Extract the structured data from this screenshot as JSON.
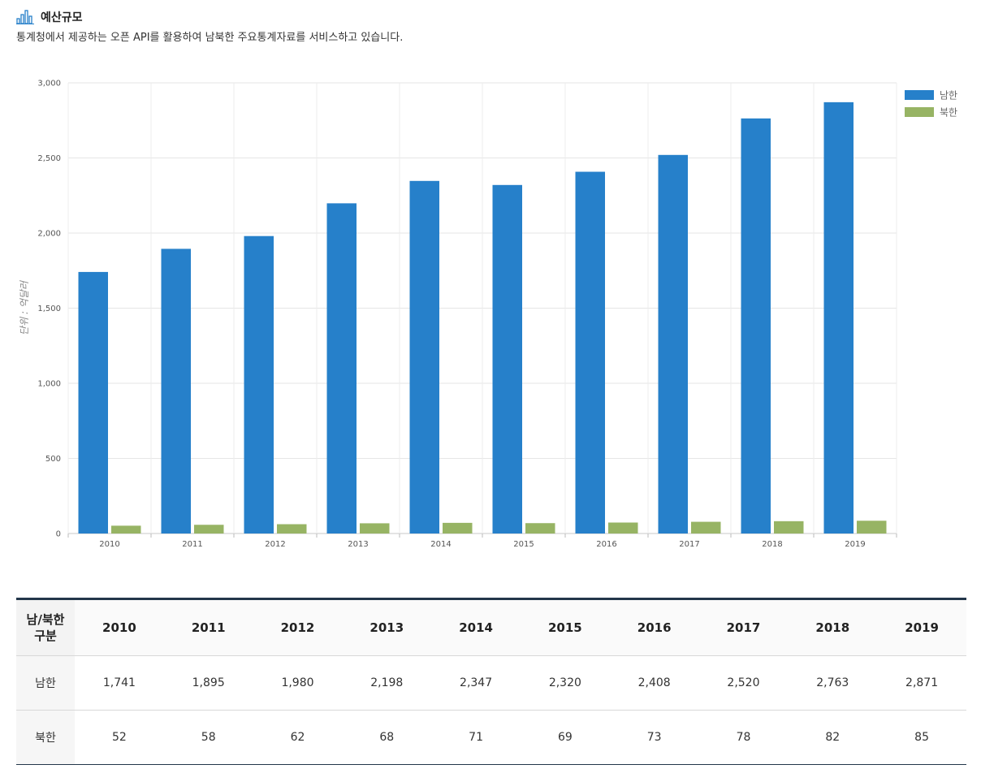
{
  "header": {
    "title": "예산규모",
    "description": "통계청에서 제공하는 오픈 API를 활용하여 남북한 주요통계자료를 서비스하고 있습니다.",
    "icon": "bar-chart-icon"
  },
  "colors": {
    "south": "#2680ca",
    "north": "#97b464",
    "table_border": "#23364a"
  },
  "chart_data": {
    "type": "bar",
    "categories": [
      "2010",
      "2011",
      "2012",
      "2013",
      "2014",
      "2015",
      "2016",
      "2017",
      "2018",
      "2019"
    ],
    "series": [
      {
        "name": "남한",
        "values": [
          1741,
          1895,
          1980,
          2198,
          2347,
          2320,
          2408,
          2520,
          2763,
          2871
        ]
      },
      {
        "name": "북한",
        "values": [
          52,
          58,
          62,
          68,
          71,
          69,
          73,
          78,
          82,
          85
        ]
      }
    ],
    "title": "",
    "xlabel": "",
    "ylabel": "단위 : 억달러",
    "ylim": [
      0,
      3000
    ],
    "yticks": [
      0,
      500,
      1000,
      1500,
      2000,
      2500,
      3000
    ],
    "ytick_labels": [
      "0",
      "500",
      "1,000",
      "1,500",
      "2,000",
      "2,500",
      "3,000"
    ],
    "grid": true,
    "legend": "top-right"
  },
  "table": {
    "header_label_line1": "남/북한",
    "header_label_line2": "구분",
    "years": [
      "2010",
      "2011",
      "2012",
      "2013",
      "2014",
      "2015",
      "2016",
      "2017",
      "2018",
      "2019"
    ],
    "rows": [
      {
        "label": "남한",
        "values": [
          "1,741",
          "1,895",
          "1,980",
          "2,198",
          "2,347",
          "2,320",
          "2,408",
          "2,520",
          "2,763",
          "2,871"
        ]
      },
      {
        "label": "북한",
        "values": [
          "52",
          "58",
          "62",
          "68",
          "71",
          "69",
          "73",
          "78",
          "82",
          "85"
        ]
      }
    ]
  }
}
